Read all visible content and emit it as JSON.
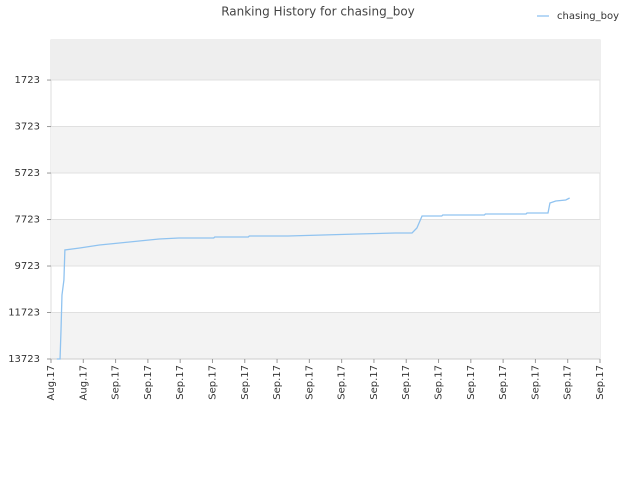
{
  "chart_data": {
    "type": "line",
    "title": "Ranking History for chasing_boy",
    "x": [
      0.18,
      0.28,
      0.31,
      0.34,
      0.4,
      0.43,
      0.89,
      1.5,
      2.12,
      2.73,
      3.35,
      3.96,
      5.04,
      5.07,
      6.11,
      6.14,
      7.34,
      8.42,
      9.49,
      10.66,
      11.18,
      11.33,
      11.49,
      12.1,
      12.13,
      13.42,
      13.45,
      14.71,
      14.74,
      15.39,
      15.45,
      15.63,
      15.94,
      16.06
    ],
    "series": [
      {
        "name": "chasing_boy",
        "color": "#90c3f0",
        "values": [
          13723,
          13723,
          12476,
          10970,
          10325,
          9034,
          8948,
          8819,
          8733,
          8647,
          8561,
          8518,
          8518,
          8475,
          8475,
          8432,
          8432,
          8389,
          8346,
          8303,
          8303,
          8088,
          7572,
          7572,
          7529,
          7529,
          7485,
          7485,
          7442,
          7442,
          7012,
          6926,
          6883,
          6797
        ]
      }
    ],
    "xlim": [
      0,
      17
    ],
    "xticks": [
      {
        "value": 0,
        "label": "Aug.17"
      },
      {
        "value": 1,
        "label": "Aug.17"
      },
      {
        "value": 2,
        "label": "Sep.17"
      },
      {
        "value": 3,
        "label": "Sep.17"
      },
      {
        "value": 4,
        "label": "Sep.17"
      },
      {
        "value": 5,
        "label": "Sep.17"
      },
      {
        "value": 6,
        "label": "Sep.17"
      },
      {
        "value": 7,
        "label": "Sep.17"
      },
      {
        "value": 8,
        "label": "Sep.17"
      },
      {
        "value": 9,
        "label": "Sep.17"
      },
      {
        "value": 10,
        "label": "Sep.17"
      },
      {
        "value": 11,
        "label": "Sep.17"
      },
      {
        "value": 12,
        "label": "Sep.17"
      },
      {
        "value": 13,
        "label": "Sep.17"
      },
      {
        "value": 14,
        "label": "Sep.17"
      },
      {
        "value": 15,
        "label": "Sep.17"
      },
      {
        "value": 16,
        "label": "Sep.17"
      },
      {
        "value": 17,
        "label": "Sep.17"
      }
    ],
    "ylim": [
      13723,
      0
    ],
    "yticks": [
      1723,
      3723,
      5723,
      7723,
      9723,
      11723,
      13723
    ],
    "grid": true,
    "legend": "top-right"
  }
}
